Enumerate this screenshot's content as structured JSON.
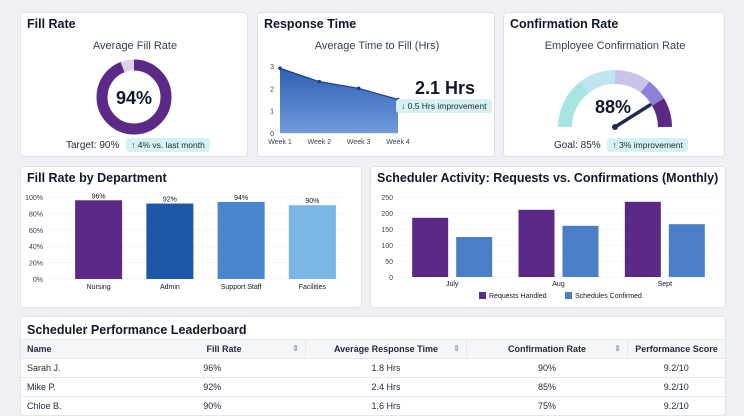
{
  "fill_rate": {
    "title": "Fill Rate",
    "subtitle": "Average Fill Rate",
    "value": "94%",
    "percent": 94,
    "target": "Target: 90%",
    "change": "↑ 4% vs. last month",
    "color": "#5b2a86"
  },
  "response_time": {
    "title": "Response Time",
    "subtitle": "Average Time to Fill (Hrs)",
    "value": "2.1 Hrs",
    "improvement": "↓ 0.5 Hrs improvement",
    "chart_data": {
      "type": "area",
      "categories": [
        "Week 1",
        "Week 2",
        "Week 3",
        "Week 4"
      ],
      "values": [
        2.9,
        2.3,
        2.0,
        1.5
      ],
      "ylim": [
        0,
        3
      ],
      "yticks": [
        "0",
        "1",
        "2",
        "3"
      ],
      "color": "#2f5fb3"
    }
  },
  "confirmation_rate": {
    "title": "Confirmation Rate",
    "subtitle": "Employee Confirmation Rate",
    "value": "88%",
    "percent": 88,
    "goal": "Goal: 85%",
    "improvement": "↑ 3% improvement"
  },
  "dept_chart": {
    "title": "Fill Rate by Department",
    "chart_data": {
      "type": "bar",
      "categories": [
        "Nursing",
        "Admin",
        "Support Staff",
        "Facilities"
      ],
      "values": [
        96,
        92,
        94,
        90
      ],
      "value_labels": [
        "96%",
        "92%",
        "94%",
        "90%"
      ],
      "colors": [
        "#5b2a86",
        "#1e56a8",
        "#4a86cf",
        "#7bb6e6"
      ],
      "ylim": [
        0,
        100
      ],
      "yticks": [
        "0%",
        "20%",
        "40%",
        "60%",
        "80%",
        "100%"
      ]
    }
  },
  "scheduler_chart": {
    "title": "Scheduler Activity: Requests vs. Confirmations (Monthly)",
    "chart_data": {
      "type": "bar",
      "categories": [
        "July",
        "Aug",
        "Sept"
      ],
      "series": [
        {
          "name": "Requests Handled",
          "values": [
            185,
            210,
            235
          ],
          "color": "#5b2a86"
        },
        {
          "name": "Schedules Confirmed",
          "values": [
            125,
            160,
            165
          ],
          "color": "#4a7ec7"
        }
      ],
      "ylim": [
        0,
        250
      ],
      "yticks": [
        "0",
        "50",
        "100",
        "150",
        "200",
        "250"
      ]
    }
  },
  "leaderboard": {
    "title": "Scheduler Performance Leaderboard",
    "columns": [
      "Name",
      "Fill Rate",
      "Average Response Time",
      "Confirmation Rate",
      "Performance Score"
    ],
    "rows": [
      [
        "Sarah J.",
        "96%",
        "1.8 Hrs",
        "90%",
        "9.2/10"
      ],
      [
        "Mike P.",
        "92%",
        "2.4 Hrs",
        "85%",
        "9.2/10"
      ],
      [
        "Chloe B.",
        "90%",
        "1.6 Hrs",
        "75%",
        "9.2/10"
      ]
    ]
  }
}
